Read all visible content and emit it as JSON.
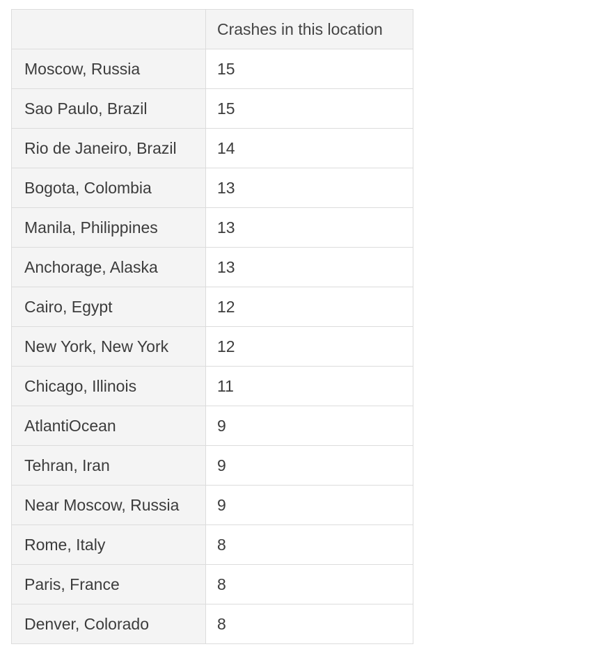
{
  "table": {
    "corner_header": "",
    "value_header": "Crashes in this location",
    "rows": [
      {
        "location": "Moscow, Russia",
        "crashes": "15"
      },
      {
        "location": "Sao Paulo, Brazil",
        "crashes": "15"
      },
      {
        "location": "Rio de Janeiro, Brazil",
        "crashes": "14"
      },
      {
        "location": "Bogota, Colombia",
        "crashes": "13"
      },
      {
        "location": "Manila, Philippines",
        "crashes": "13"
      },
      {
        "location": "Anchorage, Alaska",
        "crashes": "13"
      },
      {
        "location": "Cairo, Egypt",
        "crashes": "12"
      },
      {
        "location": "New York, New York",
        "crashes": "12"
      },
      {
        "location": "Chicago, Illinois",
        "crashes": "11"
      },
      {
        "location": "AtlantiOcean",
        "crashes": "9"
      },
      {
        "location": "Tehran, Iran",
        "crashes": "9"
      },
      {
        "location": "Near Moscow, Russia",
        "crashes": "9"
      },
      {
        "location": "Rome, Italy",
        "crashes": "8"
      },
      {
        "location": "Paris, France",
        "crashes": "8"
      },
      {
        "location": "Denver, Colorado",
        "crashes": "8"
      }
    ]
  },
  "chart_data": {
    "type": "table",
    "columns": [
      "",
      "Crashes in this location"
    ],
    "categories": [
      "Moscow, Russia",
      "Sao Paulo, Brazil",
      "Rio de Janeiro, Brazil",
      "Bogota, Colombia",
      "Manila, Philippines",
      "Anchorage, Alaska",
      "Cairo, Egypt",
      "New York, New York",
      "Chicago, Illinois",
      "AtlantiOcean",
      "Tehran, Iran",
      "Near Moscow, Russia",
      "Rome, Italy",
      "Paris, France",
      "Denver, Colorado"
    ],
    "values": [
      15,
      15,
      14,
      13,
      13,
      13,
      12,
      12,
      11,
      9,
      9,
      9,
      8,
      8,
      8
    ]
  }
}
